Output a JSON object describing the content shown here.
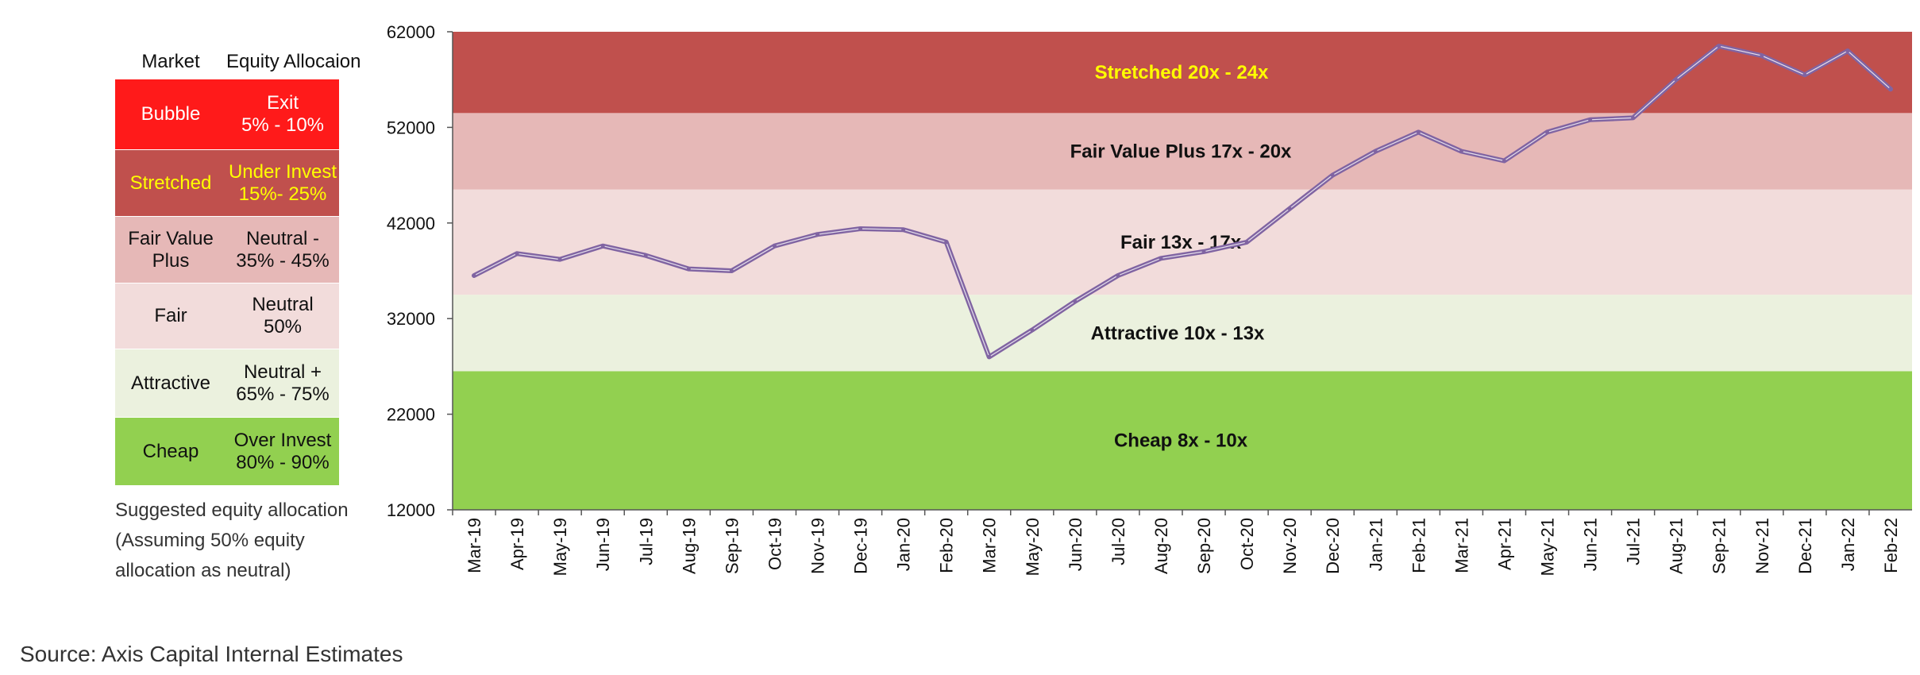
{
  "allocation_table": {
    "header": {
      "market": "Market",
      "allocation": "Equity Allocaion"
    },
    "rows": [
      {
        "market": "Bubble",
        "allocation_line1": "Exit",
        "allocation_line2": "5% - 10%",
        "bg": "#ff1a1a",
        "fg": "#ffffff"
      },
      {
        "market": "Stretched",
        "allocation_line1": "Under Invest",
        "allocation_line2": "15%- 25%",
        "bg": "#c0504d",
        "fg": "#ffff00"
      },
      {
        "market_line1": "Fair Value",
        "market_line2": "Plus",
        "allocation_line1": "Neutral -",
        "allocation_line2": "35% - 45%",
        "bg": "#e6b8b7",
        "fg": "#111111"
      },
      {
        "market": "Fair",
        "allocation_line1": "Neutral",
        "allocation_line2": "50%",
        "bg": "#f2dcdb",
        "fg": "#111111"
      },
      {
        "market": "Attractive",
        "allocation_line1": "Neutral +",
        "allocation_line2": "65% - 75%",
        "bg": "#ebf1de",
        "fg": "#111111"
      },
      {
        "market": "Cheap",
        "allocation_line1": "Over Invest",
        "allocation_line2": "80% - 90%",
        "bg": "#92d050",
        "fg": "#111111"
      }
    ],
    "note_lines": [
      "Suggested equity allocation",
      "(Assuming 50% equity",
      "allocation as neutral)"
    ]
  },
  "source": "Source: Axis Capital Internal Estimates",
  "chart_data": {
    "type": "line",
    "title": "",
    "xlabel": "",
    "ylabel": "",
    "ylim": [
      12000,
      62000
    ],
    "yticks": [
      12000,
      22000,
      32000,
      42000,
      52000,
      62000
    ],
    "categories": [
      "Mar-19",
      "Apr-19",
      "May-19",
      "Jun-19",
      "Jul-19",
      "Aug-19",
      "Sep-19",
      "Oct-19",
      "Nov-19",
      "Dec-19",
      "Jan-20",
      "Feb-20",
      "Mar-20",
      "May-20",
      "Jun-20",
      "Jul-20",
      "Aug-20",
      "Sep-20",
      "Oct-20",
      "Nov-20",
      "Dec-20",
      "Jan-21",
      "Feb-21",
      "Mar-21",
      "Apr-21",
      "May-21",
      "Jun-21",
      "Jul-21",
      "Aug-21",
      "Sep-21",
      "Nov-21",
      "Dec-21",
      "Jan-22",
      "Feb-22"
    ],
    "bands": [
      {
        "label": "Cheap 8x - 10x",
        "from": 12000,
        "to": 26500,
        "color": "#92d050",
        "label_color": "#111111"
      },
      {
        "label": "Attractive  10x - 13x",
        "from": 26500,
        "to": 34500,
        "color": "#ebf1de",
        "label_color": "#111111"
      },
      {
        "label": "Fair 13x - 17x",
        "from": 34500,
        "to": 45500,
        "color": "#f2dcdb",
        "label_color": "#111111"
      },
      {
        "label": "Fair Value Plus 17x - 20x",
        "from": 45500,
        "to": 53500,
        "color": "#e6b8b7",
        "label_color": "#111111"
      },
      {
        "label": "Stretched 20x - 24x",
        "from": 53500,
        "to": 62000,
        "color": "#c0504d",
        "label_color": "#ffff00"
      }
    ],
    "line_color": "#8064a2",
    "series": [
      {
        "values": [
          36500,
          38800,
          38200,
          39600,
          38600,
          37200,
          37000,
          39600,
          40800,
          41400,
          41300,
          40000,
          28000,
          30800,
          33800,
          36500,
          38300,
          39000,
          40000,
          43500,
          47000,
          49500,
          51500,
          49500,
          48500,
          51500,
          52800,
          53000,
          57000,
          60500,
          59500,
          57500,
          60000,
          56000
        ]
      }
    ]
  }
}
